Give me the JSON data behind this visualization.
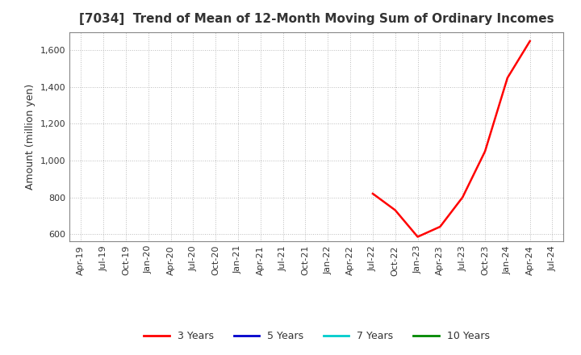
{
  "title": "[7034]  Trend of Mean of 12-Month Moving Sum of Ordinary Incomes",
  "ylabel": "Amount (million yen)",
  "background_color": "#ffffff",
  "grid_color": "#aaaaaa",
  "ylim": [
    560,
    1700
  ],
  "yticks": [
    600,
    800,
    1000,
    1200,
    1400,
    1600
  ],
  "x_tick_labels": [
    "Apr-19",
    "Jul-19",
    "Oct-19",
    "Jan-20",
    "Apr-20",
    "Jul-20",
    "Oct-20",
    "Jan-21",
    "Apr-21",
    "Jul-21",
    "Oct-21",
    "Jan-22",
    "Apr-22",
    "Jul-22",
    "Oct-22",
    "Jan-23",
    "Apr-23",
    "Jul-23",
    "Oct-23",
    "Jan-24",
    "Apr-24",
    "Jul-24"
  ],
  "series": {
    "3 Years": {
      "color": "#ff0000",
      "linewidth": 1.8,
      "x_indices": [
        13,
        14,
        15,
        16,
        17,
        18,
        19,
        20
      ],
      "y_values": [
        820,
        730,
        585,
        640,
        800,
        1050,
        1450,
        1650
      ]
    },
    "5 Years": {
      "color": "#0000cc",
      "linewidth": 1.8,
      "x_indices": [],
      "y_values": []
    },
    "7 Years": {
      "color": "#00cccc",
      "linewidth": 1.8,
      "x_indices": [],
      "y_values": []
    },
    "10 Years": {
      "color": "#008800",
      "linewidth": 1.8,
      "x_indices": [],
      "y_values": []
    }
  },
  "legend_order": [
    "3 Years",
    "5 Years",
    "7 Years",
    "10 Years"
  ],
  "title_color": "#333333",
  "title_fontsize": 11,
  "tick_fontsize": 8,
  "ylabel_fontsize": 9
}
